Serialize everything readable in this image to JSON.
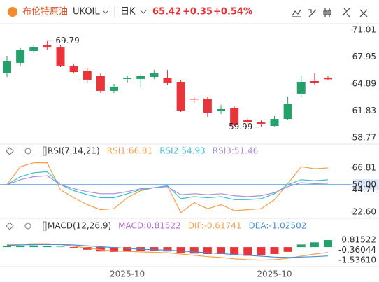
{
  "header": {
    "title": "布伦特原油",
    "symbol": "UKOIL",
    "period": "日K",
    "price": "65.42",
    "change": "+0.35",
    "change_pct": "+0.54%"
  },
  "chart_data": [
    {
      "type": "candlestick",
      "up_color": "#26a06b",
      "down_color": "#e8353a",
      "open": [
        66.16,
        67.28,
        68.63,
        69.26,
        69.1,
        66.88,
        66.4,
        65.84,
        64.1,
        65.45,
        65.45,
        65.69,
        65.53,
        65.13,
        63.19,
        63.22,
        61.79,
        62.11,
        60.76,
        60.52,
        60.12,
        60.91,
        63.78,
        65.21,
        65.61
      ],
      "high": [
        68.07,
        69.02,
        69.34,
        69.79,
        69.34,
        67.12,
        66.72,
        66.08,
        64.89,
        65.84,
        66.0,
        66.48,
        66.48,
        65.29,
        63.46,
        63.46,
        62.51,
        62.35,
        61.07,
        60.76,
        61.23,
        63.46,
        65.84,
        66.16,
        65.77
      ],
      "low": [
        65.68,
        66.88,
        68.39,
        68.71,
        66.8,
        66.08,
        65.05,
        63.86,
        63.86,
        65.05,
        64.49,
        65.45,
        64.73,
        61.71,
        62.74,
        61.15,
        61.47,
        60.12,
        60.2,
        59.99,
        60.05,
        60.76,
        63.38,
        64.81,
        65.29
      ],
      "close": [
        67.51,
        68.71,
        69.1,
        69.1,
        66.96,
        66.24,
        65.37,
        64.1,
        64.57,
        65.53,
        65.77,
        66.16,
        65.05,
        61.87,
        63.14,
        61.63,
        62.03,
        60.28,
        60.52,
        60.36,
        60.91,
        62.66,
        65.13,
        65.05,
        65.42
      ],
      "high_mark": 69.79,
      "low_mark": 59.99,
      "ylim": [
        58.13,
        71.65
      ],
      "yticks": [
        71.01,
        67.95,
        64.89,
        61.83,
        58.77
      ]
    },
    {
      "type": "line",
      "title": "RSI(7,14,21)",
      "series": [
        {
          "name": "RSI1:66.81",
          "color": "#f5a04a",
          "values": [
            50,
            68,
            72,
            72,
            45,
            37,
            30,
            25,
            26,
            37,
            44,
            47,
            48.6,
            22,
            32,
            26,
            30,
            24,
            25,
            26,
            35,
            51,
            68,
            66,
            66.81
          ]
        },
        {
          "name": "RSI2:54.93",
          "color": "#3bbfcf",
          "values": [
            50,
            58,
            62,
            63,
            50,
            44,
            40,
            37,
            37,
            41,
            45,
            47,
            49,
            36,
            38,
            37,
            38,
            35,
            35,
            36,
            41,
            50,
            55,
            54,
            54.93
          ]
        },
        {
          "name": "RSI3:51.46",
          "color": "#a98fd6",
          "values": [
            50,
            55,
            58,
            59,
            50,
            46,
            43,
            41,
            41,
            43,
            46,
            47,
            48,
            40,
            41,
            40,
            41,
            39,
            38,
            39,
            42,
            48,
            52,
            51,
            51.46
          ]
        }
      ],
      "ref_line": 50,
      "ref_color": "#3a86d6",
      "ylim": [
        17.7,
        77.3
      ],
      "yticks": [
        66.81,
        {
          "value": 50,
          "label": "50.00"
        },
        44.71,
        {
          "value": 22.6,
          "label": "22.60"
        }
      ]
    },
    {
      "type": "macd",
      "title": "MACD(12,26,9)",
      "categories": [
        null,
        null,
        null,
        null,
        null,
        null,
        null,
        null,
        null,
        "2025-10",
        null,
        null,
        null,
        null,
        null,
        null,
        null,
        null,
        null,
        null,
        "2025-10",
        null,
        null,
        null,
        null
      ],
      "histogram": {
        "name": "MACD:0.81522",
        "color": "#b06ad6",
        "up_color": "#26a06b",
        "down_color": "#e8353a",
        "values": [
          0.1,
          0.15,
          0.2,
          0.15,
          0.05,
          -0.15,
          -0.3,
          -0.5,
          -0.55,
          -0.5,
          -0.45,
          -0.45,
          -0.5,
          -0.7,
          -0.75,
          -0.8,
          -0.8,
          -0.95,
          -1.0,
          -0.95,
          -0.8,
          -0.55,
          0.3,
          0.55,
          0.81522
        ]
      },
      "series": [
        {
          "name": "DIF:-0.61741",
          "color": "#f5a04a",
          "values": [
            0.3,
            0.35,
            0.4,
            0.4,
            0.3,
            0.1,
            -0.1,
            -0.3,
            -0.45,
            -0.5,
            -0.55,
            -0.6,
            -0.65,
            -0.8,
            -0.95,
            -1.1,
            -1.2,
            -1.35,
            -1.45,
            -1.5,
            -1.45,
            -1.3,
            -1.05,
            -0.8,
            -0.61741
          ]
        },
        {
          "name": "DEA:-1.02502",
          "color": "#4a90d9",
          "values": [
            0.2,
            0.25,
            0.3,
            0.3,
            0.3,
            0.25,
            0.15,
            0.05,
            -0.05,
            -0.15,
            -0.25,
            -0.3,
            -0.35,
            -0.45,
            -0.55,
            -0.65,
            -0.75,
            -0.85,
            -0.95,
            -1.05,
            -1.15,
            -1.2,
            -1.15,
            -1.1,
            -1.02502
          ]
        }
      ],
      "ylim": [
        -2.18,
        1.87
      ],
      "yticks": [
        0.81522,
        -0.36044,
        {
          "value": -1.5361,
          "label": "-1.53610"
        }
      ]
    }
  ]
}
